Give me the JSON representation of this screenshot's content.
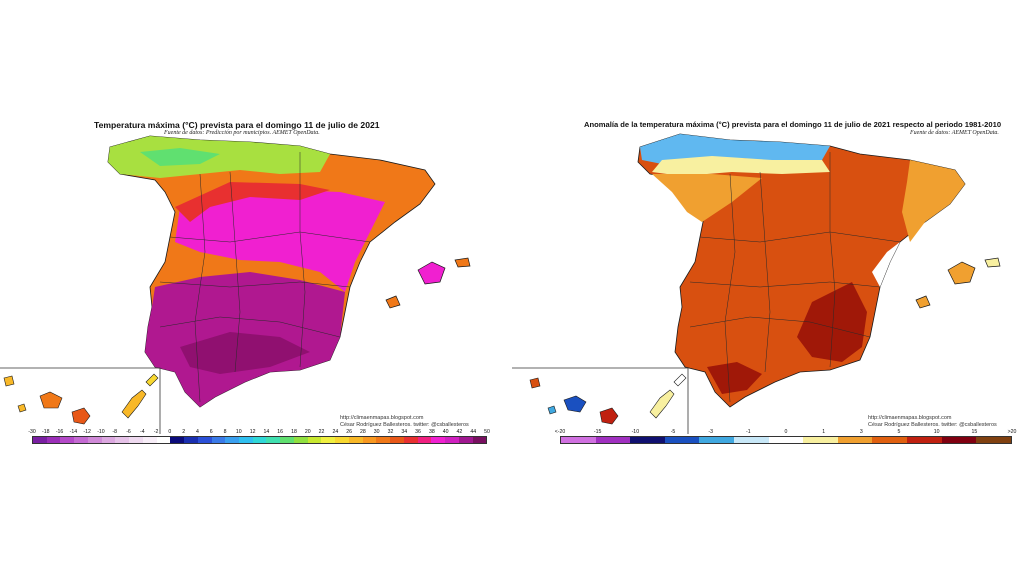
{
  "left_map": {
    "title": "Temperatura máxima (°C) prevista para el domingo 11 de julio de 2021",
    "subtitle": "Fuente de datos: Predicción por municipios. AEMET OpenData.",
    "credit_line1": "http://climaenmapas.blogspot.com",
    "credit_line2": "César Rodríguez Ballesteros. twitter: @csballesteros",
    "scale_labels": [
      "-30",
      "-18",
      "-16",
      "-14",
      "-12",
      "-10",
      "-8",
      "-6",
      "-4",
      "-2",
      "0",
      "2",
      "4",
      "6",
      "8",
      "10",
      "12",
      "14",
      "16",
      "18",
      "20",
      "22",
      "24",
      "26",
      "28",
      "30",
      "32",
      "34",
      "36",
      "38",
      "40",
      "42",
      "44",
      "50"
    ],
    "scale_colors": [
      "#7a1fa2",
      "#9b2fb8",
      "#b44ac8",
      "#c46ad2",
      "#d08ad8",
      "#dca8e0",
      "#e6c2e8",
      "#efdaf0",
      "#f8eef8",
      "#ffffff",
      "#0a0a7a",
      "#1a2fb0",
      "#2b50d8",
      "#3a7ae8",
      "#3aa0f0",
      "#30c0f0",
      "#30d8d8",
      "#40e0b0",
      "#60e070",
      "#90e040",
      "#c8e830",
      "#f0f040",
      "#f8d830",
      "#f8b828",
      "#f89820",
      "#f07818",
      "#e85818",
      "#e83030",
      "#f02080",
      "#f020d0",
      "#d020c0",
      "#a01890",
      "#781060"
    ]
  },
  "right_map": {
    "title": "Anomalía de la temperatura máxima (°C) prevista para el domingo 11 de julio de 2021 respecto al periodo 1981-2010",
    "subtitle": "Fuente de datos: AEMET OpenData.",
    "credit_line1": "http://climaenmapas.blogspot.com",
    "credit_line2": "César Rodríguez Ballesteros. twitter: @csballesteros",
    "scale_labels": [
      "<-20",
      "-15",
      "-10",
      "-5",
      "-3",
      "-1",
      "0",
      "1",
      "3",
      "5",
      "10",
      "15",
      ">20"
    ],
    "scale_colors": [
      "#d070e0",
      "#a030c0",
      "#101070",
      "#1a50c0",
      "#40a8e0",
      "#c8e8f8",
      "#ffffff",
      "#f8f0a0",
      "#f0a030",
      "#e06010",
      "#c02010",
      "#800010",
      "#804010"
    ]
  },
  "colors": {
    "temp_north": "#a8e040",
    "temp_mid": "#f07818",
    "temp_hot": "#f020d0",
    "temp_hottest": "#b01890",
    "anom_base": "#d85010",
    "anom_high": "#a01808",
    "anom_low": "#f0a030",
    "anom_cool": "#60b8f0",
    "border": "#1a1a1a"
  }
}
